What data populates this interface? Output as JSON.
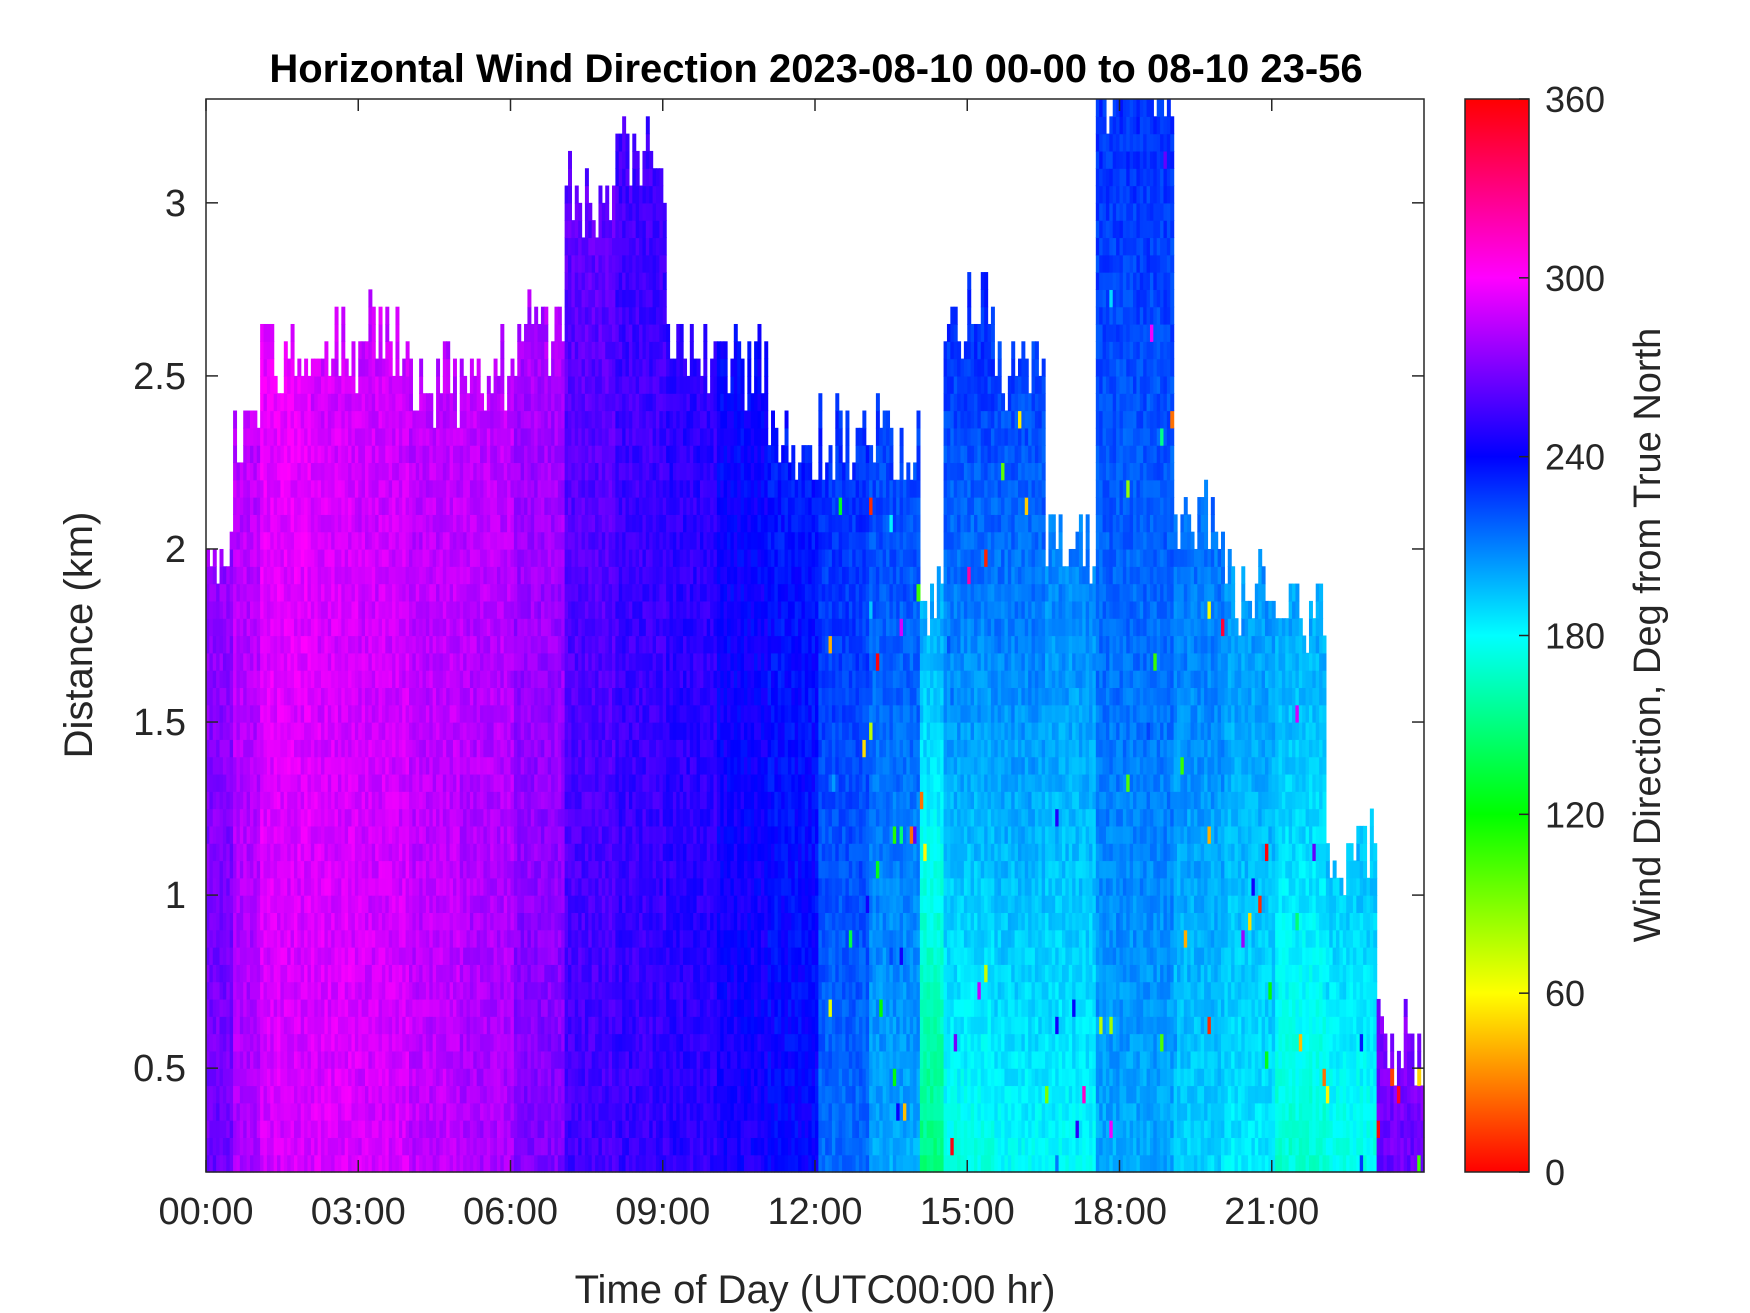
{
  "chart_data": {
    "type": "heatmap",
    "title": "Horizontal Wind Direction 2023-08-10 00-00 to 08-10 23-56",
    "xlabel": "Time of Day (UTC00:00 hr)",
    "ylabel": "Distance (km)",
    "colorbar_label": "Wind Direction, Deg from True North",
    "x_unit": "hour of day",
    "xlim": [
      0,
      24
    ],
    "ylim": [
      0.2,
      3.3
    ],
    "clim": [
      0,
      360
    ],
    "x_ticks": [
      0,
      3,
      6,
      9,
      12,
      15,
      18,
      21
    ],
    "x_tick_labels": [
      "00:00",
      "03:00",
      "06:00",
      "09:00",
      "12:00",
      "15:00",
      "18:00",
      "21:00"
    ],
    "y_ticks": [
      0.5,
      1,
      1.5,
      2,
      2.5,
      3
    ],
    "y_tick_labels": [
      "0.5",
      "1",
      "1.5",
      "2",
      "2.5",
      "3"
    ],
    "colorbar_ticks": [
      0,
      60,
      120,
      180,
      240,
      300,
      360
    ],
    "colorbar_tick_labels": [
      "0",
      "60",
      "120",
      "180",
      "240",
      "300",
      "360"
    ],
    "colormap_stops": [
      {
        "value": 0,
        "color": "#ff0000"
      },
      {
        "value": 60,
        "color": "#ffff00"
      },
      {
        "value": 120,
        "color": "#00ff00"
      },
      {
        "value": 180,
        "color": "#00ffff"
      },
      {
        "value": 240,
        "color": "#0000ff"
      },
      {
        "value": 300,
        "color": "#ff00ff"
      },
      {
        "value": 360,
        "color": "#ff0000"
      }
    ],
    "grid": false,
    "segments": [
      {
        "t0": 0.0,
        "t1": 0.5,
        "top_km": 1.95,
        "dir_low": 265,
        "dir_high": 275
      },
      {
        "t0": 0.5,
        "t1": 1.0,
        "top_km": 2.3,
        "dir_low": 280,
        "dir_high": 285
      },
      {
        "t0": 1.0,
        "t1": 2.0,
        "top_km": 2.55,
        "dir_low": 290,
        "dir_high": 295
      },
      {
        "t0": 2.0,
        "t1": 3.0,
        "top_km": 2.55,
        "dir_low": 292,
        "dir_high": 290
      },
      {
        "t0": 3.0,
        "t1": 4.0,
        "top_km": 2.6,
        "dir_low": 290,
        "dir_high": 288
      },
      {
        "t0": 4.0,
        "t1": 5.0,
        "top_km": 2.45,
        "dir_low": 285,
        "dir_high": 285
      },
      {
        "t0": 5.0,
        "t1": 6.0,
        "top_km": 2.5,
        "dir_low": 280,
        "dir_high": 285
      },
      {
        "t0": 6.0,
        "t1": 7.0,
        "top_km": 2.6,
        "dir_low": 270,
        "dir_high": 280
      },
      {
        "t0": 7.0,
        "t1": 8.0,
        "top_km": 3.0,
        "dir_low": 255,
        "dir_high": 262
      },
      {
        "t0": 8.0,
        "t1": 9.0,
        "top_km": 3.1,
        "dir_low": 252,
        "dir_high": 255
      },
      {
        "t0": 9.0,
        "t1": 10.0,
        "top_km": 2.55,
        "dir_low": 250,
        "dir_high": 250
      },
      {
        "t0": 10.0,
        "t1": 11.0,
        "top_km": 2.5,
        "dir_low": 245,
        "dir_high": 240
      },
      {
        "t0": 11.0,
        "t1": 12.0,
        "top_km": 2.25,
        "dir_low": 240,
        "dir_high": 235
      },
      {
        "t0": 12.0,
        "t1": 13.0,
        "top_km": 2.3,
        "dir_low": 215,
        "dir_high": 230
      },
      {
        "t0": 13.0,
        "t1": 14.0,
        "top_km": 2.3,
        "dir_low": 200,
        "dir_high": 225
      },
      {
        "t0": 14.0,
        "t1": 14.5,
        "top_km": 1.8,
        "dir_low": 150,
        "dir_high": 200
      },
      {
        "t0": 14.5,
        "t1": 15.5,
        "top_km": 2.65,
        "dir_low": 175,
        "dir_high": 230
      },
      {
        "t0": 15.5,
        "t1": 16.5,
        "top_km": 2.5,
        "dir_low": 180,
        "dir_high": 225
      },
      {
        "t0": 16.5,
        "t1": 17.5,
        "top_km": 2.0,
        "dir_low": 180,
        "dir_high": 210
      },
      {
        "t0": 17.5,
        "t1": 19.0,
        "top_km": 3.3,
        "dir_low": 200,
        "dir_high": 230
      },
      {
        "t0": 19.0,
        "t1": 20.0,
        "top_km": 2.1,
        "dir_low": 190,
        "dir_high": 215
      },
      {
        "t0": 20.0,
        "t1": 21.0,
        "top_km": 1.85,
        "dir_low": 185,
        "dir_high": 205
      },
      {
        "t0": 21.0,
        "t1": 22.0,
        "top_km": 1.75,
        "dir_low": 170,
        "dir_high": 200
      },
      {
        "t0": 22.0,
        "t1": 23.0,
        "top_km": 1.1,
        "dir_low": 175,
        "dir_high": 195
      },
      {
        "t0": 23.0,
        "t1": 24.0,
        "top_km": 0.55,
        "dir_low": 265,
        "dir_high": 270
      }
    ]
  }
}
